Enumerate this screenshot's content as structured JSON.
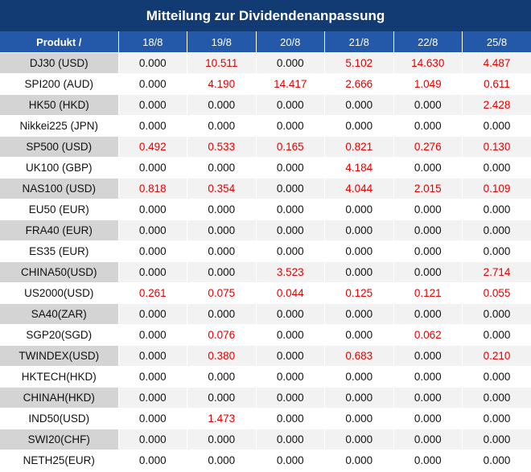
{
  "title": "Mitteilung zur Dividendenanpassung",
  "header": {
    "product_label": "Produkt /",
    "dates": [
      "18/8",
      "19/8",
      "20/8",
      "21/8",
      "22/8",
      "25/8"
    ]
  },
  "rows": [
    {
      "product": "DJ30 (USD)",
      "values": [
        "0.000",
        "10.511",
        "0.000",
        "5.102",
        "14.630",
        "4.487"
      ]
    },
    {
      "product": "SPI200 (AUD)",
      "values": [
        "0.000",
        "4.190",
        "14.417",
        "2.666",
        "1.049",
        "0.611"
      ]
    },
    {
      "product": "HK50 (HKD)",
      "values": [
        "0.000",
        "0.000",
        "0.000",
        "0.000",
        "0.000",
        "2.428"
      ]
    },
    {
      "product": "Nikkei225 (JPN)",
      "values": [
        "0.000",
        "0.000",
        "0.000",
        "0.000",
        "0.000",
        "0.000"
      ]
    },
    {
      "product": "SP500 (USD)",
      "values": [
        "0.492",
        "0.533",
        "0.165",
        "0.821",
        "0.276",
        "0.130"
      ]
    },
    {
      "product": "UK100 (GBP)",
      "values": [
        "0.000",
        "0.000",
        "0.000",
        "4.184",
        "0.000",
        "0.000"
      ]
    },
    {
      "product": "NAS100 (USD)",
      "values": [
        "0.818",
        "0.354",
        "0.000",
        "4.044",
        "2.015",
        "0.109"
      ]
    },
    {
      "product": "EU50 (EUR)",
      "values": [
        "0.000",
        "0.000",
        "0.000",
        "0.000",
        "0.000",
        "0.000"
      ]
    },
    {
      "product": "FRA40 (EUR)",
      "values": [
        "0.000",
        "0.000",
        "0.000",
        "0.000",
        "0.000",
        "0.000"
      ]
    },
    {
      "product": "ES35 (EUR)",
      "values": [
        "0.000",
        "0.000",
        "0.000",
        "0.000",
        "0.000",
        "0.000"
      ]
    },
    {
      "product": "CHINA50(USD)",
      "values": [
        "0.000",
        "0.000",
        "3.523",
        "0.000",
        "0.000",
        "2.714"
      ]
    },
    {
      "product": "US2000(USD)",
      "values": [
        "0.261",
        "0.075",
        "0.044",
        "0.125",
        "0.121",
        "0.055"
      ]
    },
    {
      "product": "SA40(ZAR)",
      "values": [
        "0.000",
        "0.000",
        "0.000",
        "0.000",
        "0.000",
        "0.000"
      ]
    },
    {
      "product": "SGP20(SGD)",
      "values": [
        "0.000",
        "0.076",
        "0.000",
        "0.000",
        "0.062",
        "0.000"
      ]
    },
    {
      "product": "TWINDEX(USD)",
      "values": [
        "0.000",
        "0.380",
        "0.000",
        "0.683",
        "0.000",
        "0.210"
      ]
    },
    {
      "product": "HKTECH(HKD)",
      "values": [
        "0.000",
        "0.000",
        "0.000",
        "0.000",
        "0.000",
        "0.000"
      ]
    },
    {
      "product": "CHINAH(HKD)",
      "values": [
        "0.000",
        "0.000",
        "0.000",
        "0.000",
        "0.000",
        "0.000"
      ]
    },
    {
      "product": "IND50(USD)",
      "values": [
        "0.000",
        "1.473",
        "0.000",
        "0.000",
        "0.000",
        "0.000"
      ]
    },
    {
      "product": "SWI20(CHF)",
      "values": [
        "0.000",
        "0.000",
        "0.000",
        "0.000",
        "0.000",
        "0.000"
      ]
    },
    {
      "product": "NETH25(EUR)",
      "values": [
        "0.000",
        "0.000",
        "0.000",
        "0.000",
        "0.000",
        "0.000"
      ]
    }
  ],
  "colors": {
    "title_bg": "#123a73",
    "header_bg": "#2458a8",
    "nonzero_text": "#e60000",
    "zero_text": "#111111"
  }
}
